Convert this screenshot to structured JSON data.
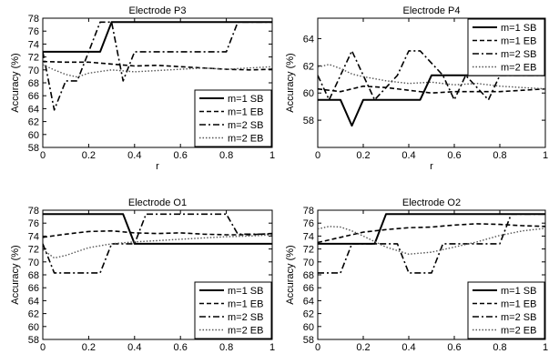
{
  "chart_data": [
    {
      "type": "line",
      "title": "Electrode P3",
      "xlabel": "r",
      "ylabel": "Accuracy (%)",
      "xlim": [
        0,
        1
      ],
      "ylim": [
        58,
        78
      ],
      "xticks": [
        "0",
        "0.2",
        "0.4",
        "0.6",
        "0.8",
        "1"
      ],
      "yticks": [
        "58",
        "60",
        "62",
        "64",
        "66",
        "68",
        "70",
        "72",
        "74",
        "76",
        "78"
      ],
      "legend_position": "bottom-right",
      "series": [
        {
          "name": "m=1 SB",
          "style": "solid",
          "x": [
            0,
            0.25,
            0.3,
            1
          ],
          "y": [
            72.8,
            72.8,
            77.4,
            77.4
          ]
        },
        {
          "name": "m=1 EB",
          "style": "dashed",
          "x": [
            0,
            0.1,
            0.2,
            0.3,
            0.4,
            0.5,
            0.6,
            0.7,
            0.8,
            0.9,
            1
          ],
          "y": [
            71.3,
            71.2,
            71.2,
            70.9,
            70.6,
            70.7,
            70.5,
            70.3,
            70.1,
            70.0,
            70.1
          ]
        },
        {
          "name": "m=2 SB",
          "style": "dashdot",
          "x": [
            0,
            0.05,
            0.1,
            0.15,
            0.2,
            0.25,
            0.3,
            0.35,
            0.4,
            0.45,
            0.75,
            0.8,
            0.85,
            1
          ],
          "y": [
            72.8,
            63.8,
            68.3,
            68.3,
            72.8,
            77.4,
            77.4,
            68.3,
            72.8,
            72.8,
            72.8,
            72.8,
            77.4,
            77.4
          ]
        },
        {
          "name": "m=2 EB",
          "style": "dotted",
          "x": [
            0,
            0.05,
            0.1,
            0.15,
            0.2,
            0.3,
            0.4,
            0.5,
            0.6,
            0.7,
            0.8,
            0.9,
            1
          ],
          "y": [
            70.8,
            70.0,
            69.3,
            68.9,
            69.5,
            70.0,
            69.7,
            69.9,
            70.1,
            70.3,
            70.1,
            70.3,
            70.5
          ]
        }
      ]
    },
    {
      "type": "line",
      "title": "Electrode P4",
      "xlabel": "r",
      "ylabel": "Accuracy (%)",
      "xlim": [
        0,
        1
      ],
      "ylim": [
        56,
        65.5
      ],
      "xticks": [
        "0",
        "0.2",
        "0.4",
        "0.6",
        "0.8",
        "1"
      ],
      "yticks": [
        "58",
        "60",
        "62",
        "64"
      ],
      "legend_position": "top-right",
      "series": [
        {
          "name": "m=1 SB",
          "style": "solid",
          "x": [
            0,
            0.1,
            0.15,
            0.2,
            0.45,
            0.5,
            1
          ],
          "y": [
            59.5,
            59.5,
            57.6,
            59.5,
            59.5,
            61.3,
            61.3
          ]
        },
        {
          "name": "m=1 EB",
          "style": "dashed",
          "x": [
            0,
            0.1,
            0.2,
            0.3,
            0.4,
            0.5,
            0.6,
            0.7,
            0.8,
            0.9,
            1
          ],
          "y": [
            60.3,
            60.1,
            60.5,
            60.4,
            60.2,
            60.0,
            60.1,
            60.1,
            60.1,
            60.2,
            60.3
          ]
        },
        {
          "name": "m=2 SB",
          "style": "dashdot",
          "x": [
            0,
            0.05,
            0.15,
            0.25,
            0.35,
            0.4,
            0.45,
            0.55,
            0.6,
            0.65,
            0.75,
            0.8,
            1
          ],
          "y": [
            61.3,
            59.5,
            63.1,
            59.5,
            61.3,
            63.1,
            63.1,
            61.3,
            59.5,
            61.3,
            59.5,
            61.3,
            61.3
          ]
        },
        {
          "name": "m=2 EB",
          "style": "dotted",
          "x": [
            0,
            0.05,
            0.1,
            0.15,
            0.2,
            0.3,
            0.4,
            0.5,
            0.6,
            0.7,
            0.8,
            0.9,
            1
          ],
          "y": [
            61.9,
            62.1,
            61.8,
            61.4,
            61.2,
            60.9,
            60.7,
            60.8,
            60.6,
            60.7,
            60.5,
            60.4,
            60.3
          ]
        }
      ]
    },
    {
      "type": "line",
      "title": "Electrode O1",
      "xlabel": "r",
      "ylabel": "Accuracy (%)",
      "xlim": [
        0,
        1
      ],
      "ylim": [
        58,
        78
      ],
      "xticks": [
        "0",
        "0.2",
        "0.4",
        "0.6",
        "0.8",
        "1"
      ],
      "yticks": [
        "58",
        "60",
        "62",
        "64",
        "66",
        "68",
        "70",
        "72",
        "74",
        "76",
        "78"
      ],
      "legend_position": "bottom-right",
      "series": [
        {
          "name": "m=1 SB",
          "style": "solid",
          "x": [
            0,
            0.35,
            0.4,
            1
          ],
          "y": [
            77.4,
            77.4,
            72.8,
            72.8
          ]
        },
        {
          "name": "m=1 EB",
          "style": "dashed",
          "x": [
            0,
            0.1,
            0.2,
            0.3,
            0.4,
            0.5,
            0.6,
            0.7,
            0.8,
            0.9,
            1
          ],
          "y": [
            73.8,
            74.3,
            74.7,
            74.8,
            74.5,
            74.4,
            74.5,
            74.3,
            74.2,
            74.2,
            74.4
          ]
        },
        {
          "name": "m=2 SB",
          "style": "dashdot",
          "x": [
            0,
            0.05,
            0.1,
            0.25,
            0.3,
            0.35,
            0.4,
            0.45,
            0.8,
            0.85,
            1
          ],
          "y": [
            72.8,
            68.3,
            68.3,
            68.3,
            72.8,
            72.8,
            72.8,
            77.4,
            77.4,
            74.3,
            74.3
          ]
        },
        {
          "name": "m=2 EB",
          "style": "dotted",
          "x": [
            0,
            0.05,
            0.1,
            0.15,
            0.2,
            0.3,
            0.4,
            0.5,
            0.6,
            0.7,
            0.8,
            0.9,
            1
          ],
          "y": [
            71.9,
            70.6,
            71.0,
            71.6,
            72.2,
            72.8,
            73.1,
            73.3,
            73.5,
            73.7,
            73.9,
            74.0,
            74.2
          ]
        }
      ]
    },
    {
      "type": "line",
      "title": "Electrode O2",
      "xlabel": "r",
      "ylabel": "Accuracy (%)",
      "xlim": [
        0,
        1
      ],
      "ylim": [
        58,
        78
      ],
      "xticks": [
        "0",
        "0.2",
        "0.4",
        "0.6",
        "0.8",
        "1"
      ],
      "yticks": [
        "58",
        "60",
        "62",
        "64",
        "66",
        "68",
        "70",
        "72",
        "74",
        "76",
        "78"
      ],
      "legend_position": "bottom-right",
      "series": [
        {
          "name": "m=1 SB",
          "style": "solid",
          "x": [
            0,
            0.25,
            0.3,
            1
          ],
          "y": [
            72.8,
            72.8,
            77.4,
            77.4
          ]
        },
        {
          "name": "m=1 EB",
          "style": "dashed",
          "x": [
            0,
            0.1,
            0.2,
            0.3,
            0.4,
            0.5,
            0.6,
            0.7,
            0.8,
            0.9,
            1
          ],
          "y": [
            73.0,
            73.8,
            74.6,
            75.0,
            75.3,
            75.4,
            75.7,
            75.9,
            75.8,
            75.6,
            75.5
          ]
        },
        {
          "name": "m=2 SB",
          "style": "dashdot",
          "x": [
            0,
            0.1,
            0.15,
            0.3,
            0.35,
            0.4,
            0.45,
            0.5,
            0.55,
            0.8,
            0.85,
            1
          ],
          "y": [
            68.3,
            68.3,
            72.8,
            72.8,
            72.8,
            68.3,
            68.3,
            68.3,
            72.8,
            72.8,
            77.4,
            77.4
          ]
        },
        {
          "name": "m=2 EB",
          "style": "dotted",
          "x": [
            0,
            0.05,
            0.1,
            0.15,
            0.2,
            0.3,
            0.4,
            0.5,
            0.6,
            0.7,
            0.8,
            0.9,
            1
          ],
          "y": [
            75.1,
            75.5,
            75.4,
            74.8,
            74.0,
            72.3,
            71.2,
            71.5,
            72.3,
            73.1,
            74.1,
            74.8,
            75.2
          ]
        }
      ]
    }
  ]
}
